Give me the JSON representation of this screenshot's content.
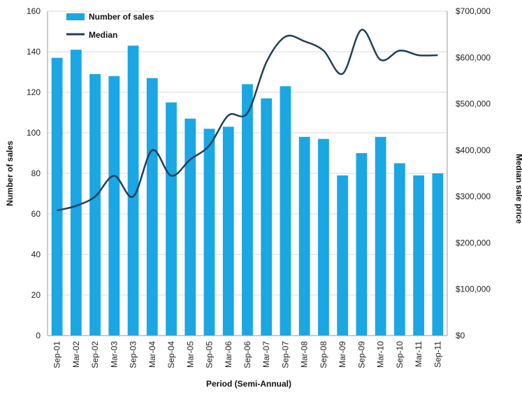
{
  "chart_data": {
    "type": "bar",
    "xlabel": "Period (Semi-Annual)",
    "ylabel_left": "Number of sales",
    "ylabel_right": "Median sale price",
    "ylim_left": [
      0,
      160
    ],
    "ylim_right": [
      0,
      700000
    ],
    "yticks_left": [
      "0",
      "20",
      "40",
      "60",
      "80",
      "100",
      "120",
      "140",
      "160"
    ],
    "yticks_right": [
      "$0",
      "$100,000",
      "$200,000",
      "$300,000",
      "$400,000",
      "$500,000",
      "$600,000",
      "$700,000"
    ],
    "grid": true,
    "legend_position": "top-left",
    "categories": [
      "Sep-01",
      "Mar-02",
      "Sep-02",
      "Mar-03",
      "Sep-03",
      "Mar-04",
      "Sep-04",
      "Mar-05",
      "Sep-05",
      "Mar-06",
      "Sep-06",
      "Mar-07",
      "Sep-07",
      "Mar-08",
      "Sep-08",
      "Mar-09",
      "Sep-09",
      "Mar-10",
      "Sep-10",
      "Mar-11",
      "Sep-11"
    ],
    "series": [
      {
        "name": "Number of sales",
        "type": "bar",
        "axis": "left",
        "color": "#1aa7e3",
        "values": [
          137,
          141,
          129,
          128,
          143,
          127,
          115,
          107,
          102,
          103,
          124,
          117,
          123,
          98,
          97,
          79,
          90,
          98,
          85,
          79,
          80
        ]
      },
      {
        "name": "Median",
        "type": "line",
        "axis": "right",
        "color": "#1f3f5b",
        "values": [
          270000,
          280000,
          300000,
          345000,
          300000,
          400000,
          345000,
          380000,
          410000,
          475000,
          480000,
          590000,
          645000,
          635000,
          615000,
          565000,
          660000,
          595000,
          615000,
          605000,
          605000
        ]
      }
    ]
  }
}
